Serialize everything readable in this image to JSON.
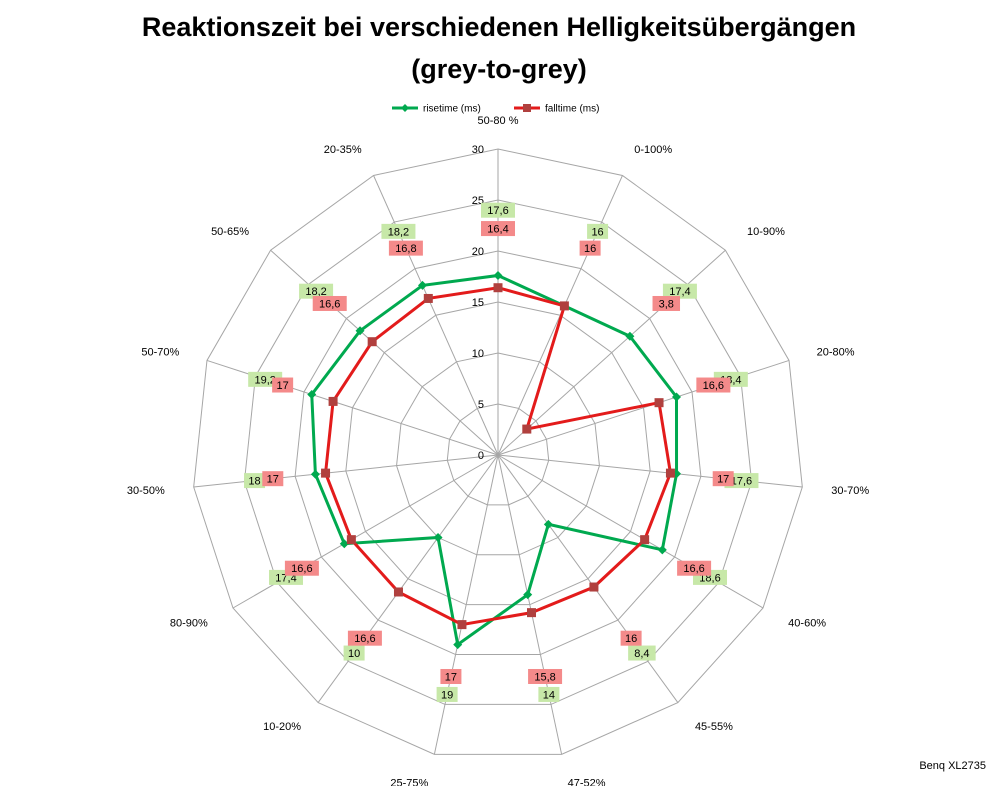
{
  "chart_data": {
    "type": "radar",
    "title": "Reaktionszeit bei verschiedenen Helligkeitsübergängen",
    "subtitle": "(grey-to-grey)",
    "categories": [
      "50-80 %",
      "0-100%",
      "10-90%",
      "20-80%",
      "30-70%",
      "40-60%",
      "45-55%",
      "47-52%",
      "25-75%",
      "10-20%",
      "80-90%",
      "30-50%",
      "50-70%",
      "50-65%",
      "20-35%"
    ],
    "rlim": [
      0,
      30
    ],
    "ticks": [
      0,
      5,
      10,
      15,
      20,
      25,
      30
    ],
    "grid": true,
    "legend_position": "top",
    "series": [
      {
        "name": "risetime (ms)",
        "color": "#00a94f",
        "marker": "diamond",
        "values": [
          17.6,
          16,
          17.4,
          18.4,
          17.6,
          18.6,
          8.4,
          14,
          19,
          10,
          17.4,
          18,
          19.2,
          18.2,
          18.2
        ],
        "labels": [
          "17,6",
          "16",
          "17,4",
          "18,4",
          "17,6",
          "18,6",
          "8,4",
          "14",
          "19",
          "10",
          "17,4",
          "18",
          "19,2",
          "18,2",
          "18,2"
        ],
        "label_color": "#c7e8a8"
      },
      {
        "name": "falltime (ms)",
        "color": "#e31b1b",
        "marker": "square",
        "values": [
          16.4,
          16,
          3.8,
          16.6,
          17,
          16.6,
          16,
          15.8,
          17,
          16.6,
          16.6,
          17,
          17,
          16.6,
          16.8
        ],
        "labels": [
          "16,4",
          "16",
          "3,8",
          "16,6",
          "17",
          "16,6",
          "16",
          "15,8",
          "17",
          "16,6",
          "16,6",
          "17",
          "17",
          "16,6",
          "16,8"
        ],
        "label_color": "#f48a8a"
      }
    ]
  },
  "footer": "Benq XL2735"
}
